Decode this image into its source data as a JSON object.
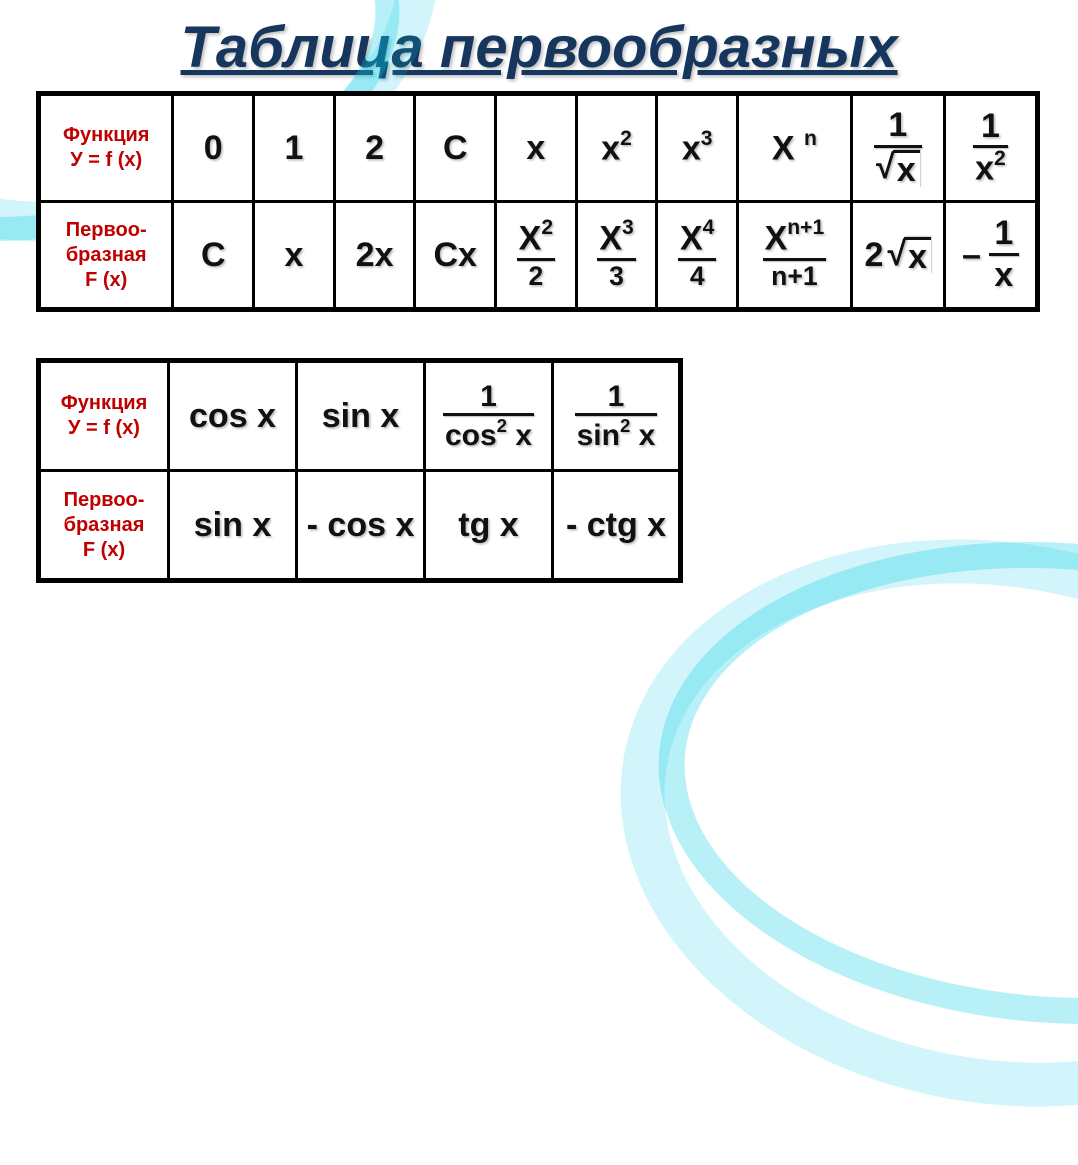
{
  "title": "Таблица  первообразных",
  "labels": {
    "function_row": "Функция\nУ = f (x)",
    "antiderivative_row": "Первоо-\nбразная\nF (x)"
  },
  "table1": {
    "functions": [
      {
        "type": "text",
        "v": "0"
      },
      {
        "type": "text",
        "v": "1"
      },
      {
        "type": "text",
        "v": "2"
      },
      {
        "type": "text",
        "v": "С"
      },
      {
        "type": "text",
        "v": "х"
      },
      {
        "type": "power",
        "base": "х",
        "exp": "2"
      },
      {
        "type": "power",
        "base": "х",
        "exp": "3"
      },
      {
        "type": "power_sp",
        "base": "Х",
        "exp": "n"
      },
      {
        "type": "frac_sqrt",
        "num": "1",
        "arg": "х"
      },
      {
        "type": "frac_pow",
        "num": "1",
        "base": "х",
        "exp": "2"
      }
    ],
    "antiderivatives": [
      {
        "type": "text",
        "v": "С"
      },
      {
        "type": "text",
        "v": "х"
      },
      {
        "type": "text",
        "v": "2х"
      },
      {
        "type": "text",
        "v": "Сх"
      },
      {
        "type": "frac_pow_over",
        "base": "Х",
        "exp": "2",
        "den": "2"
      },
      {
        "type": "frac_pow_over",
        "base": "Х",
        "exp": "3",
        "den": "3"
      },
      {
        "type": "frac_pow_over",
        "base": "Х",
        "exp": "4",
        "den": "4"
      },
      {
        "type": "frac_pow_over",
        "base": "Х",
        "exp": "n+1",
        "den": "n+1"
      },
      {
        "type": "coef_sqrt",
        "coef": "2",
        "arg": "х"
      },
      {
        "type": "neg_frac",
        "num": "1",
        "den": "х"
      }
    ]
  },
  "table2": {
    "functions": [
      {
        "type": "text",
        "v": "cos x"
      },
      {
        "type": "text",
        "v": "sin x"
      },
      {
        "type": "frac_trig2",
        "num": "1",
        "fn": "cos",
        "exp": "2",
        "arg": "x"
      },
      {
        "type": "frac_trig2",
        "num": "1",
        "fn": "sin",
        "exp": "2",
        "arg": "x"
      }
    ],
    "antiderivatives": [
      {
        "type": "text",
        "v": "sin x"
      },
      {
        "type": "text",
        "v": "- cos x"
      },
      {
        "type": "text",
        "v": "tg x"
      },
      {
        "type": "text",
        "v": "- ctg x"
      }
    ]
  },
  "style": {
    "title_color": "#17365d",
    "title_fontsize": 58,
    "label_color": "#c00000",
    "label_fontsize": 20,
    "math_fontsize": 34,
    "border_color": "#000000",
    "outer_border_width": 5,
    "inner_border_width": 3,
    "background": "#ffffff",
    "accent_swoosh": "#00c8e6",
    "text_shadow": "1.5px 1.5px 2px rgba(0,0,0,0.28)"
  }
}
